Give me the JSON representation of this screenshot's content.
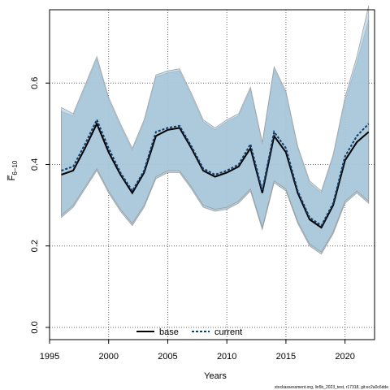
{
  "chart_data": {
    "type": "line",
    "xlabel": "Years",
    "ylabel": "F̅",
    "ylabel_sub": "6−10",
    "xlim": [
      1995,
      2022.5
    ],
    "ylim": [
      -0.03,
      0.78
    ],
    "xticks": [
      1995,
      2000,
      2005,
      2010,
      2015,
      2020
    ],
    "yticks": [
      0.0,
      0.2,
      0.4,
      0.6
    ],
    "grid": true,
    "legend_position": "bottom-center",
    "footer": "stockassessment.org, lin5b_2023_test, r17318, git:ec2a0c6dde",
    "colors": {
      "band_fill": "#a7c7d8",
      "band_outline": "#8b8b8b",
      "base_line": "#000000",
      "current_line": "#0b3d6e"
    },
    "x": [
      1996,
      1997,
      1998,
      1999,
      2000,
      2001,
      2002,
      2003,
      2004,
      2005,
      2006,
      2007,
      2008,
      2009,
      2010,
      2011,
      2012,
      2013,
      2014,
      2015,
      2016,
      2017,
      2018,
      2019,
      2020,
      2021,
      2022
    ],
    "series": [
      {
        "name": "base",
        "style": "solid",
        "values": [
          0.375,
          0.385,
          0.44,
          0.5,
          0.43,
          0.375,
          0.33,
          0.38,
          0.47,
          0.485,
          0.49,
          0.44,
          0.385,
          0.37,
          0.38,
          0.395,
          0.44,
          0.33,
          0.47,
          0.43,
          0.33,
          0.265,
          0.245,
          0.3,
          0.41,
          0.455,
          0.48
        ],
        "lower": [
          0.27,
          0.295,
          0.34,
          0.385,
          0.33,
          0.285,
          0.25,
          0.295,
          0.365,
          0.38,
          0.38,
          0.34,
          0.295,
          0.285,
          0.29,
          0.305,
          0.335,
          0.24,
          0.355,
          0.335,
          0.255,
          0.2,
          0.18,
          0.23,
          0.305,
          0.33,
          0.305
        ],
        "upper": [
          0.53,
          0.52,
          0.59,
          0.66,
          0.56,
          0.495,
          0.435,
          0.505,
          0.615,
          0.625,
          0.63,
          0.57,
          0.505,
          0.485,
          0.505,
          0.52,
          0.585,
          0.45,
          0.635,
          0.575,
          0.44,
          0.355,
          0.33,
          0.42,
          0.555,
          0.65,
          0.755
        ]
      },
      {
        "name": "current",
        "style": "dashed",
        "values": [
          0.385,
          0.395,
          0.45,
          0.51,
          0.44,
          0.38,
          0.335,
          0.385,
          0.48,
          0.49,
          0.495,
          0.445,
          0.39,
          0.375,
          0.385,
          0.4,
          0.45,
          0.335,
          0.48,
          0.44,
          0.335,
          0.27,
          0.25,
          0.305,
          0.42,
          0.47,
          0.5
        ],
        "lower": [
          0.275,
          0.3,
          0.345,
          0.39,
          0.335,
          0.29,
          0.255,
          0.3,
          0.37,
          0.385,
          0.385,
          0.345,
          0.3,
          0.29,
          0.295,
          0.31,
          0.34,
          0.245,
          0.36,
          0.34,
          0.26,
          0.205,
          0.185,
          0.235,
          0.31,
          0.335,
          0.31
        ],
        "upper": [
          0.54,
          0.525,
          0.595,
          0.665,
          0.565,
          0.5,
          0.44,
          0.51,
          0.62,
          0.63,
          0.635,
          0.575,
          0.51,
          0.49,
          0.51,
          0.525,
          0.59,
          0.455,
          0.64,
          0.58,
          0.445,
          0.36,
          0.335,
          0.425,
          0.565,
          0.665,
          0.79
        ]
      }
    ]
  }
}
